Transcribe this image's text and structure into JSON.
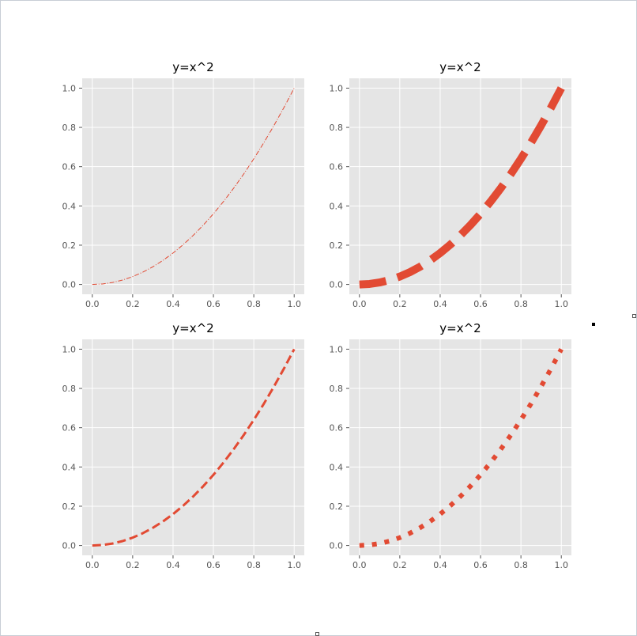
{
  "chart_data": [
    {
      "type": "line",
      "title": "y=x^2",
      "series": [
        {
          "x": [
            0,
            0.05,
            0.1,
            0.15,
            0.2,
            0.25,
            0.3,
            0.35,
            0.4,
            0.45,
            0.5,
            0.55,
            0.6,
            0.65,
            0.7,
            0.75,
            0.8,
            0.85,
            0.9,
            0.95,
            1.0
          ],
          "y": [
            0,
            0.0025,
            0.01,
            0.0225,
            0.04,
            0.0625,
            0.09,
            0.1225,
            0.16,
            0.2025,
            0.25,
            0.3025,
            0.36,
            0.4225,
            0.49,
            0.5625,
            0.64,
            0.7225,
            0.81,
            0.9025,
            1.0
          ],
          "line_style": "dashdot",
          "line_width": "thin"
        }
      ],
      "x_ticks": [
        "0.0",
        "0.2",
        "0.4",
        "0.6",
        "0.8",
        "1.0"
      ],
      "y_ticks": [
        "0.0",
        "0.2",
        "0.4",
        "0.6",
        "0.8",
        "1.0"
      ],
      "xlim": [
        -0.05,
        1.05
      ],
      "ylim": [
        -0.05,
        1.05
      ],
      "grid": true,
      "color": "#E24A33",
      "background": "#E5E5E5"
    },
    {
      "type": "line",
      "title": "y=x^2",
      "series": [
        {
          "x": [
            0,
            0.05,
            0.1,
            0.15,
            0.2,
            0.25,
            0.3,
            0.35,
            0.4,
            0.45,
            0.5,
            0.55,
            0.6,
            0.65,
            0.7,
            0.75,
            0.8,
            0.85,
            0.9,
            0.95,
            1.0
          ],
          "y": [
            0,
            0.0025,
            0.01,
            0.0225,
            0.04,
            0.0625,
            0.09,
            0.1225,
            0.16,
            0.2025,
            0.25,
            0.3025,
            0.36,
            0.4225,
            0.49,
            0.5625,
            0.64,
            0.7225,
            0.81,
            0.9025,
            1.0
          ],
          "line_style": "dashed",
          "line_width": "very thick"
        }
      ],
      "x_ticks": [
        "0.0",
        "0.2",
        "0.4",
        "0.6",
        "0.8",
        "1.0"
      ],
      "y_ticks": [
        "0.0",
        "0.2",
        "0.4",
        "0.6",
        "0.8",
        "1.0"
      ],
      "xlim": [
        -0.05,
        1.05
      ],
      "ylim": [
        -0.05,
        1.05
      ],
      "grid": true,
      "color": "#E24A33",
      "background": "#E5E5E5"
    },
    {
      "type": "line",
      "title": "y=x^2",
      "series": [
        {
          "x": [
            0,
            0.05,
            0.1,
            0.15,
            0.2,
            0.25,
            0.3,
            0.35,
            0.4,
            0.45,
            0.5,
            0.55,
            0.6,
            0.65,
            0.7,
            0.75,
            0.8,
            0.85,
            0.9,
            0.95,
            1.0
          ],
          "y": [
            0,
            0.0025,
            0.01,
            0.0225,
            0.04,
            0.0625,
            0.09,
            0.1225,
            0.16,
            0.2025,
            0.25,
            0.3025,
            0.36,
            0.4225,
            0.49,
            0.5625,
            0.64,
            0.7225,
            0.81,
            0.9025,
            1.0
          ],
          "line_style": "dashed",
          "line_width": "medium"
        }
      ],
      "x_ticks": [
        "0.0",
        "0.2",
        "0.4",
        "0.6",
        "0.8",
        "1.0"
      ],
      "y_ticks": [
        "0.0",
        "0.2",
        "0.4",
        "0.6",
        "0.8",
        "1.0"
      ],
      "xlim": [
        -0.05,
        1.05
      ],
      "ylim": [
        -0.05,
        1.05
      ],
      "grid": true,
      "color": "#E24A33",
      "background": "#E5E5E5"
    },
    {
      "type": "line",
      "title": "y=x^2",
      "series": [
        {
          "x": [
            0,
            0.05,
            0.1,
            0.15,
            0.2,
            0.25,
            0.3,
            0.35,
            0.4,
            0.45,
            0.5,
            0.55,
            0.6,
            0.65,
            0.7,
            0.75,
            0.8,
            0.85,
            0.9,
            0.95,
            1.0
          ],
          "y": [
            0,
            0.0025,
            0.01,
            0.0225,
            0.04,
            0.0625,
            0.09,
            0.1225,
            0.16,
            0.2025,
            0.25,
            0.3025,
            0.36,
            0.4225,
            0.49,
            0.5625,
            0.64,
            0.7225,
            0.81,
            0.9025,
            1.0
          ],
          "line_style": "dotted",
          "line_width": "thick"
        }
      ],
      "x_ticks": [
        "0.0",
        "0.2",
        "0.4",
        "0.6",
        "0.8",
        "1.0"
      ],
      "y_ticks": [
        "0.0",
        "0.2",
        "0.4",
        "0.6",
        "0.8",
        "1.0"
      ],
      "xlim": [
        -0.05,
        1.05
      ],
      "ylim": [
        -0.05,
        1.05
      ],
      "grid": true,
      "color": "#E24A33",
      "background": "#E5E5E5"
    }
  ]
}
